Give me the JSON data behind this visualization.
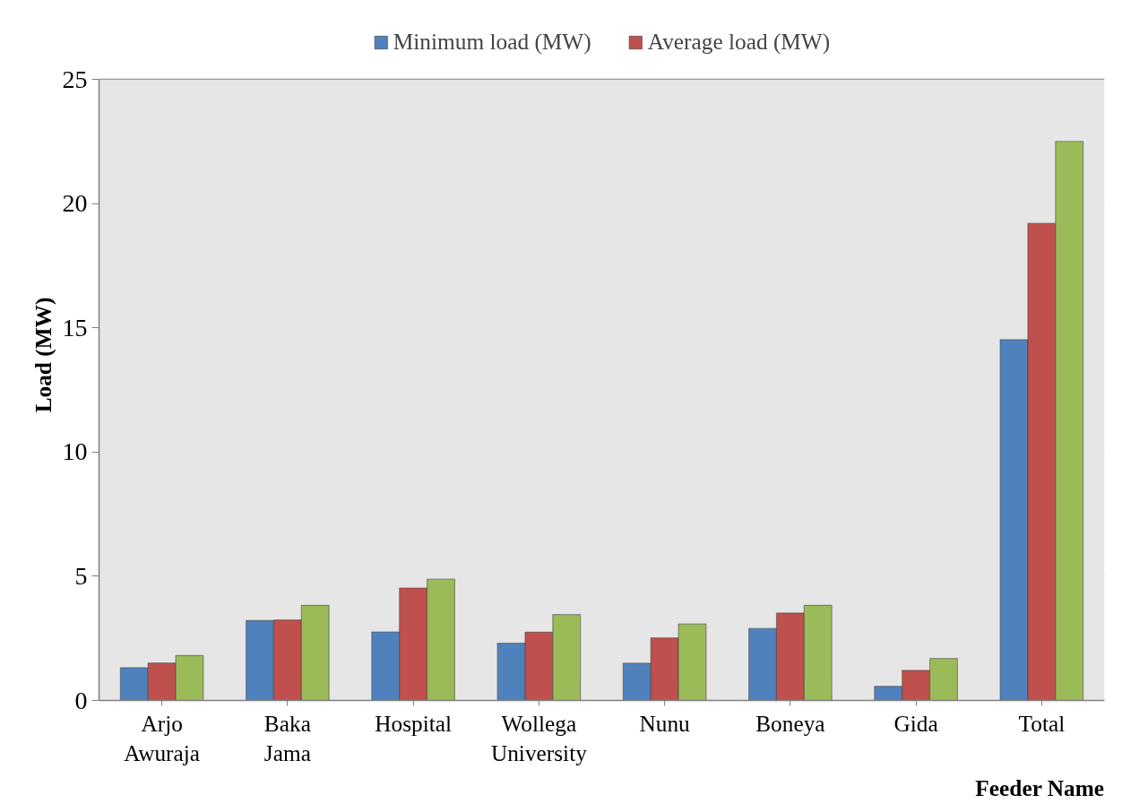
{
  "chart_data": {
    "type": "bar",
    "xlabel": "Feeder Name",
    "ylabel": "Load (MW)",
    "categories": [
      "Arjo Awuraja",
      "Baka Jama",
      "Hospital",
      "Wollega University",
      "Nunu",
      "Boneya",
      "Gida",
      "Total"
    ],
    "series": [
      {
        "name": "Minimum load (MW)",
        "color": "#4f81bd",
        "values": [
          1.32,
          3.22,
          2.76,
          2.31,
          1.5,
          2.9,
          0.57,
          14.53
        ]
      },
      {
        "name": "Average load (MW)",
        "color": "#c0504d",
        "values": [
          1.51,
          3.24,
          4.53,
          2.75,
          2.52,
          3.52,
          1.21,
          19.21
        ]
      },
      {
        "color": "#9bbb59",
        "values": [
          1.81,
          3.83,
          4.89,
          3.46,
          3.08,
          3.83,
          1.69,
          22.51
        ]
      }
    ],
    "ylim": [
      0,
      25
    ],
    "yticks": [
      0,
      5,
      10,
      15,
      20,
      25
    ],
    "grid": "y",
    "legend": "top"
  }
}
